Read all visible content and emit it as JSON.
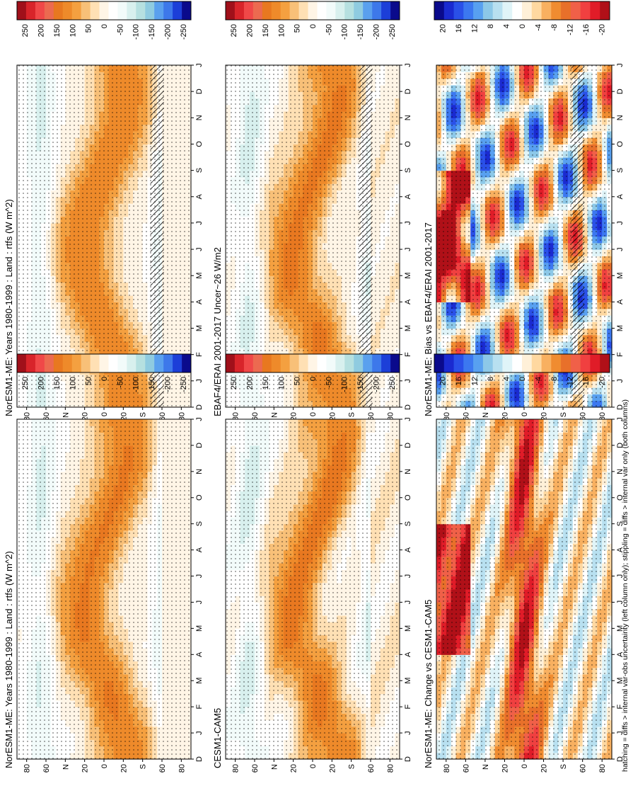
{
  "figure": {
    "footnote": "hatching = diffs > internal var-obs uncertainty (left column only); stippling = diffs > internal var only (both columns)"
  },
  "colors": {
    "abs_scale": [
      "#0a0a8c",
      "#1c3fd8",
      "#3d78ea",
      "#5aa0ee",
      "#8fcbe0",
      "#b6e0e0",
      "#d8f0ee",
      "#f2fbfa",
      "#ffffff",
      "#fff5e6",
      "#ffe0b4",
      "#f8c078",
      "#f4a040",
      "#ee8a2a",
      "#e87820",
      "#ec6a50",
      "#f04848",
      "#d8242a",
      "#a0101a"
    ],
    "diff_scale": [
      "#0a0a8c",
      "#1a2ad0",
      "#2a50e8",
      "#3c78f0",
      "#58a0f0",
      "#8cc8e8",
      "#b8e0f0",
      "#e0f4f8",
      "#ffffff",
      "#fff0d8",
      "#ffd8a0",
      "#f8b060",
      "#f08c30",
      "#e8702a",
      "#f06048",
      "#f04040",
      "#e01c28",
      "#b01018"
    ],
    "dark": "#000000"
  },
  "chart_data": [
    {
      "id": "p1",
      "type": "heatmap",
      "title": "NorESM1-ME: Years 1980-1999 : Land : rtfs (W m^2)",
      "x": [
        "D",
        "J",
        "F",
        "M",
        "A",
        "M",
        "J",
        "J",
        "A",
        "S",
        "O",
        "N",
        "D",
        "J"
      ],
      "ytick_labels": [
        "80",
        "60",
        "N",
        "20",
        "0",
        "20",
        "S",
        "60",
        "80"
      ],
      "y_values": [
        80,
        60,
        40,
        20,
        0,
        -20,
        -40,
        -60,
        -80
      ],
      "ylim": [
        -90,
        90
      ],
      "hatching": true,
      "stippling": true,
      "colorbar": {
        "labels": [
          "250",
          "200",
          "150",
          "100",
          "50",
          "0",
          "-50",
          "-100",
          "-150",
          "-200",
          "-250"
        ],
        "range": [
          -275,
          275
        ],
        "scale": "abs"
      }
    },
    {
      "id": "p2",
      "type": "heatmap",
      "title": "NorESM1-ME: Years 1980-1999 : Land : rtfs (W m^2)",
      "x": [
        "D",
        "J",
        "F",
        "M",
        "A",
        "M",
        "J",
        "J",
        "A",
        "S",
        "O",
        "N",
        "D",
        "J"
      ],
      "ytick_labels": [
        "80",
        "60",
        "N",
        "20",
        "0",
        "20",
        "S",
        "60",
        "80"
      ],
      "y_values": [
        80,
        60,
        40,
        20,
        0,
        -20,
        -40,
        -60,
        -80
      ],
      "ylim": [
        -90,
        90
      ],
      "hatching": false,
      "stippling": true,
      "colorbar": {
        "labels": [
          "250",
          "200",
          "150",
          "100",
          "50",
          "0",
          "-50",
          "-100",
          "-150",
          "-200",
          "-250"
        ],
        "range": [
          -275,
          275
        ],
        "scale": "abs"
      }
    },
    {
      "id": "p3",
      "type": "heatmap",
      "title": "EBAF4/ERAI 2001-2017 Uncer~26 W/m2",
      "x": [
        "D",
        "J",
        "F",
        "M",
        "A",
        "M",
        "J",
        "J",
        "A",
        "S",
        "O",
        "N",
        "D",
        "J"
      ],
      "ytick_labels": [
        "80",
        "60",
        "N",
        "20",
        "0",
        "20",
        "S",
        "60",
        "80"
      ],
      "y_values": [
        80,
        60,
        40,
        20,
        0,
        -20,
        -40,
        -60,
        -80
      ],
      "ylim": [
        -90,
        90
      ],
      "hatching": true,
      "stippling": true,
      "colorbar": {
        "labels": [
          "250",
          "200",
          "150",
          "100",
          "50",
          "0",
          "-50",
          "-100",
          "-150",
          "-200",
          "-250"
        ],
        "range": [
          -275,
          275
        ],
        "scale": "abs"
      }
    },
    {
      "id": "p4",
      "type": "heatmap",
      "title": "CESM1-CAM5",
      "x": [
        "D",
        "J",
        "F",
        "M",
        "A",
        "M",
        "J",
        "J",
        "A",
        "S",
        "O",
        "N",
        "D",
        "J"
      ],
      "ytick_labels": [
        "80",
        "60",
        "N",
        "20",
        "0",
        "20",
        "S",
        "60",
        "80"
      ],
      "y_values": [
        80,
        60,
        40,
        20,
        0,
        -20,
        -40,
        -60,
        -80
      ],
      "ylim": [
        -90,
        90
      ],
      "hatching": false,
      "stippling": true,
      "colorbar": {
        "labels": [
          "250",
          "200",
          "150",
          "100",
          "50",
          "0",
          "-50",
          "-100",
          "-150",
          "-200",
          "-250"
        ],
        "range": [
          -275,
          275
        ],
        "scale": "abs"
      }
    },
    {
      "id": "p5",
      "type": "heatmap",
      "title": "NorESM1-ME: Bias vs EBAF4/ERAI 2001-2017",
      "x": [
        "D",
        "J",
        "F",
        "M",
        "A",
        "M",
        "J",
        "J",
        "A",
        "S",
        "O",
        "N",
        "D",
        "J"
      ],
      "ytick_labels": [
        "80",
        "60",
        "N",
        "20",
        "0",
        "20",
        "S",
        "60",
        "80"
      ],
      "y_values": [
        80,
        60,
        40,
        20,
        0,
        -20,
        -40,
        -60,
        -80
      ],
      "ylim": [
        -90,
        90
      ],
      "hatching": true,
      "stippling": true,
      "colorbar": {
        "labels": [
          "20",
          "16",
          "12",
          "8",
          "4",
          "0",
          "-4",
          "-8",
          "-12",
          "-16",
          "-20"
        ],
        "range": [
          -22,
          22
        ],
        "scale": "diff"
      }
    },
    {
      "id": "p6",
      "type": "heatmap",
      "title": "NorESM1-ME: Change vs CESM1-CAM5",
      "x": [
        "D",
        "J",
        "F",
        "M",
        "A",
        "M",
        "J",
        "J",
        "A",
        "S",
        "O",
        "N",
        "D",
        "J"
      ],
      "ytick_labels": [
        "80",
        "60",
        "N",
        "20",
        "0",
        "20",
        "S",
        "60",
        "80"
      ],
      "y_values": [
        80,
        60,
        40,
        20,
        0,
        -20,
        -40,
        -60,
        -80
      ],
      "ylim": [
        -90,
        90
      ],
      "hatching": false,
      "stippling": true,
      "colorbar": {
        "labels": [
          "20",
          "16",
          "12",
          "8",
          "4",
          "0",
          "-4",
          "-8",
          "-12",
          "-16",
          "-20"
        ],
        "range": [
          -22,
          22
        ],
        "scale": "diff"
      }
    }
  ]
}
